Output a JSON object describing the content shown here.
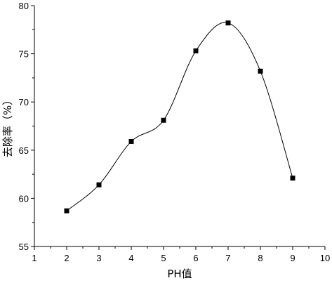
{
  "chart_data": {
    "type": "scatter",
    "xlabel": "PH值",
    "ylabel": "去除率（%）",
    "xlim": [
      1,
      10
    ],
    "ylim": [
      55,
      80
    ],
    "xticks": [
      1,
      2,
      3,
      4,
      5,
      6,
      7,
      8,
      9,
      10
    ],
    "yticks": [
      55,
      60,
      65,
      70,
      75,
      80
    ],
    "grid": false,
    "series": [
      {
        "x": [
          2,
          3,
          4,
          5,
          6,
          7,
          8,
          9
        ],
        "values": [
          58.7,
          61.4,
          65.9,
          68.1,
          75.3,
          78.2,
          73.2,
          62.1
        ],
        "marker": "square",
        "line": "smooth spline",
        "color": "#000000"
      }
    ]
  }
}
